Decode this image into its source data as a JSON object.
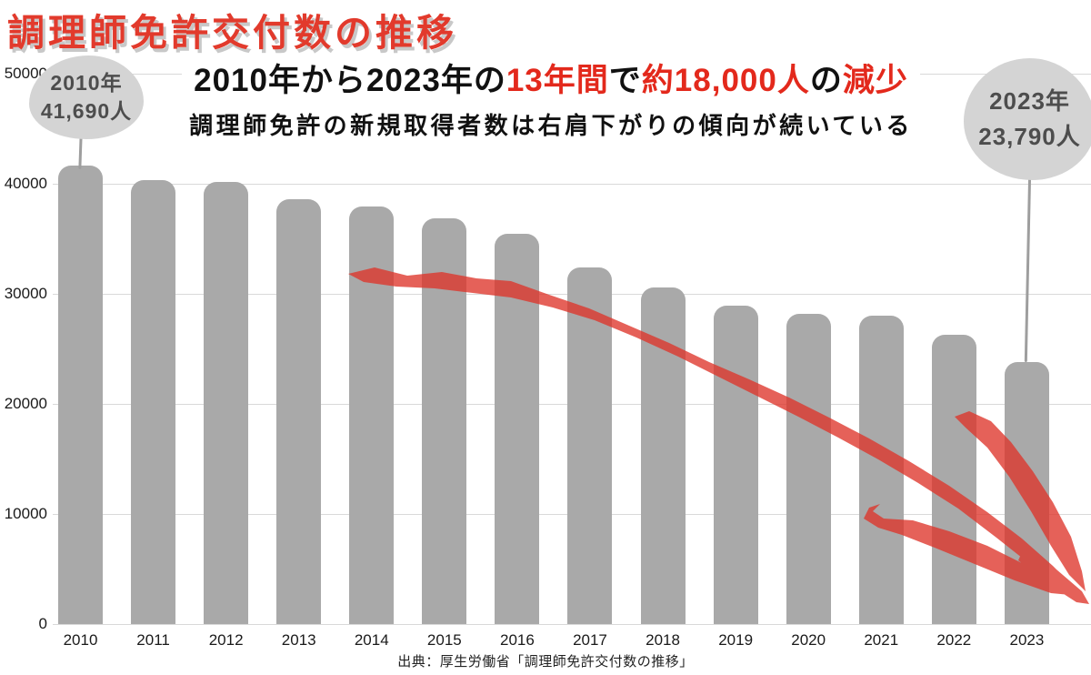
{
  "page_title": "調理師免許交付数の推移",
  "headline": {
    "seg1": "2010年から2023年の",
    "seg2": "13年間",
    "seg3": "で",
    "seg4": "約18,000人",
    "seg5": "の",
    "seg6": "減少"
  },
  "subheadline": "調理師免許の新規取得者数は右肩下がりの傾向が続いている",
  "callouts": {
    "start": {
      "year": "2010年",
      "count": "41,690人"
    },
    "end": {
      "year": "2023年",
      "count": "23,790人"
    }
  },
  "source": "出典：厚生労働省「調理師免許交付数の推移」",
  "colors": {
    "title_red": "#e23a2c",
    "accent_red": "#e3291c",
    "bar_gray": "#a9a9a9",
    "bubble_gray": "#d4d4d4",
    "bubble_text": "#4d4d4d",
    "gridline": "#d9d9d9",
    "arrow": "#de342a"
  },
  "chart_data": {
    "type": "bar",
    "title": "調理師免許交付数の推移",
    "categories": [
      "2010",
      "2011",
      "2012",
      "2013",
      "2014",
      "2015",
      "2016",
      "2017",
      "2018",
      "2019",
      "2020",
      "2021",
      "2022",
      "2023"
    ],
    "values": [
      41690,
      40350,
      40150,
      38600,
      37900,
      36850,
      35450,
      32400,
      30600,
      28950,
      28150,
      28000,
      26250,
      23790
    ],
    "xlabel": "",
    "ylabel": "",
    "ylim": [
      0,
      50000
    ],
    "yticks": [
      0,
      10000,
      20000,
      30000,
      40000,
      50000
    ],
    "grid": true,
    "legend": "none",
    "bar_color": "#a9a9a9"
  }
}
